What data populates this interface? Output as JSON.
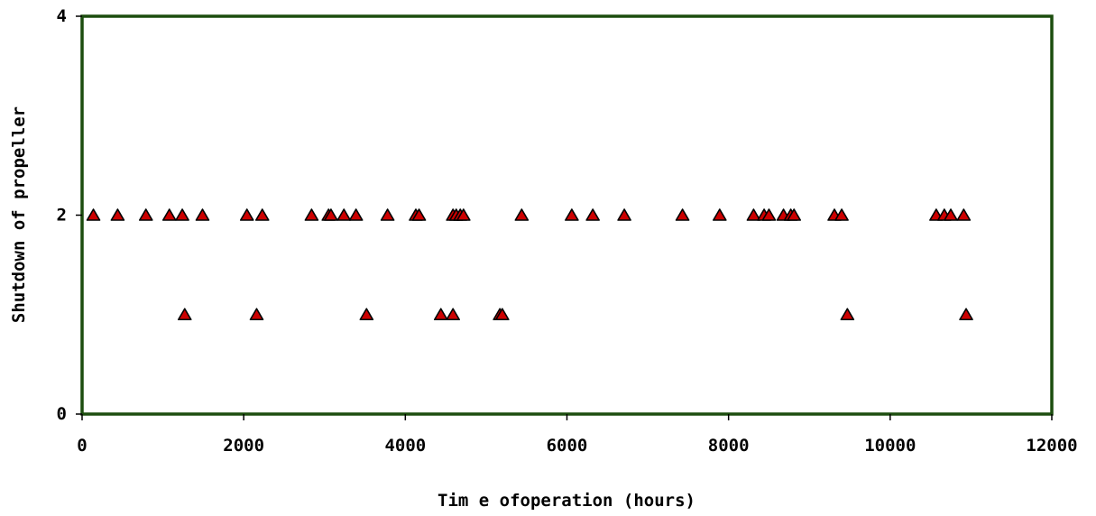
{
  "chart_data": {
    "type": "scatter",
    "title": "",
    "xlabel": "Tim e ofoperation (hours)",
    "ylabel": "Shutdown of propeller",
    "xlim": [
      0,
      12000
    ],
    "ylim": [
      0,
      4
    ],
    "xticks": [
      "0",
      "2000",
      "4000",
      "6000",
      "8000",
      "10000",
      "12000"
    ],
    "yticks": [
      "0",
      "2",
      "4"
    ],
    "grid": false,
    "legend": "none",
    "series": [
      {
        "marker": "triangle",
        "color": "#cc0000",
        "points": [
          [
            140,
            2
          ],
          [
            440,
            2
          ],
          [
            790,
            2
          ],
          [
            1080,
            2
          ],
          [
            1240,
            2
          ],
          [
            1490,
            2
          ],
          [
            2040,
            2
          ],
          [
            2230,
            2
          ],
          [
            2840,
            2
          ],
          [
            3050,
            2
          ],
          [
            3080,
            2
          ],
          [
            3240,
            2
          ],
          [
            3390,
            2
          ],
          [
            3780,
            2
          ],
          [
            4130,
            2
          ],
          [
            4170,
            2
          ],
          [
            4590,
            2
          ],
          [
            4630,
            2
          ],
          [
            4680,
            2
          ],
          [
            4720,
            2
          ],
          [
            5440,
            2
          ],
          [
            6060,
            2
          ],
          [
            6320,
            2
          ],
          [
            6710,
            2
          ],
          [
            7430,
            2
          ],
          [
            7890,
            2
          ],
          [
            8310,
            2
          ],
          [
            8440,
            2
          ],
          [
            8500,
            2
          ],
          [
            8680,
            2
          ],
          [
            8770,
            2
          ],
          [
            8810,
            2
          ],
          [
            9310,
            2
          ],
          [
            9400,
            2
          ],
          [
            10570,
            2
          ],
          [
            10670,
            2
          ],
          [
            10750,
            2
          ],
          [
            10910,
            2
          ],
          [
            1270,
            1
          ],
          [
            2160,
            1
          ],
          [
            3520,
            1
          ],
          [
            4440,
            1
          ],
          [
            4590,
            1
          ],
          [
            5170,
            1
          ],
          [
            5200,
            1
          ],
          [
            9470,
            1
          ],
          [
            10940,
            1
          ]
        ]
      }
    ]
  },
  "colors": {
    "plot_border": "#1c4d0e",
    "marker_fill": "#cc0000",
    "marker_stroke": "#000000"
  }
}
